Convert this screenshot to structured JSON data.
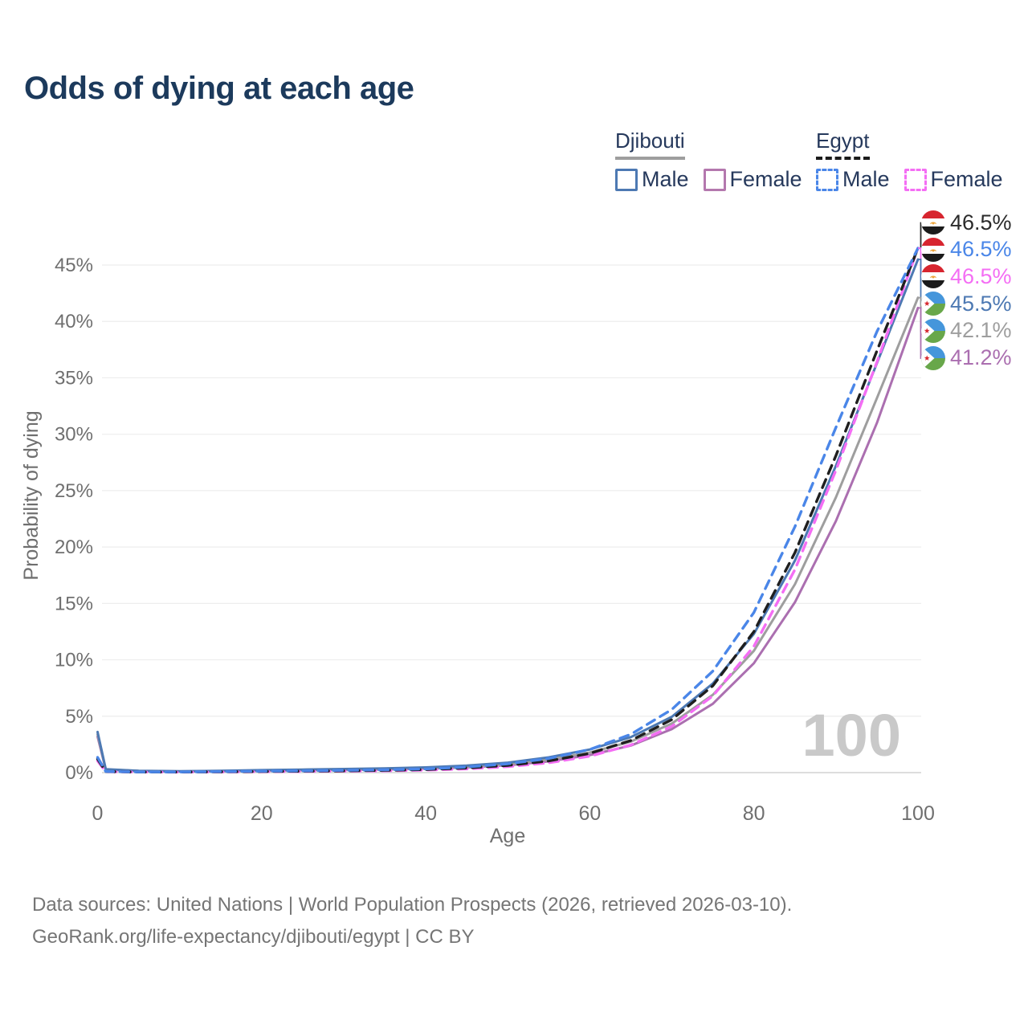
{
  "header": {
    "title": "Odds of dying at each age"
  },
  "legend": {
    "position": "top-right",
    "groups": [
      {
        "country": "Djibouti",
        "line_style": "solid",
        "underline_color": "#9e9e9e",
        "items": [
          {
            "label": "Male",
            "color": "#4d79b3",
            "box_style": "solid"
          },
          {
            "label": "Female",
            "color": "#b478ae",
            "box_style": "solid"
          }
        ]
      },
      {
        "country": "Egypt",
        "line_style": "dashed",
        "underline_color": "#1b1b1b",
        "items": [
          {
            "label": "Male",
            "color": "#4a86e8",
            "box_style": "dashed"
          },
          {
            "label": "Female",
            "color": "#f46ef4",
            "box_style": "dashed"
          }
        ]
      }
    ]
  },
  "watermark": "100",
  "chart_data": {
    "type": "line",
    "title": "Odds of dying at each age",
    "xlabel": "Age",
    "ylabel": "Probability of dying",
    "xlim": [
      0,
      100
    ],
    "ylim_percent": [
      0,
      47
    ],
    "xticks": [
      0,
      20,
      40,
      60,
      80,
      100
    ],
    "yticks_percent": [
      0,
      5,
      10,
      15,
      20,
      25,
      30,
      35,
      40,
      45
    ],
    "grid": "horizontal",
    "x_ages": [
      0,
      1,
      5,
      10,
      15,
      20,
      25,
      30,
      35,
      40,
      45,
      50,
      55,
      60,
      65,
      70,
      75,
      80,
      85,
      90,
      95,
      100
    ],
    "series": [
      {
        "name": "djibouti-female",
        "country": "Djibouti",
        "sex": "Female",
        "color": "#ab6fb0",
        "dash": false,
        "values_percent": [
          3.2,
          0.26,
          0.14,
          0.1,
          0.12,
          0.16,
          0.2,
          0.23,
          0.28,
          0.35,
          0.46,
          0.65,
          1.0,
          1.55,
          2.4,
          3.85,
          6.1,
          9.7,
          15.1,
          22.3,
          31.0,
          41.2
        ]
      },
      {
        "name": "djibouti-both",
        "country": "Djibouti",
        "sex": "Both",
        "color": "#9e9e9e",
        "dash": false,
        "values_percent": [
          3.4,
          0.28,
          0.15,
          0.11,
          0.14,
          0.19,
          0.23,
          0.27,
          0.32,
          0.4,
          0.53,
          0.75,
          1.15,
          1.78,
          2.75,
          4.35,
          6.9,
          10.8,
          16.7,
          24.4,
          33.2,
          42.1
        ]
      },
      {
        "name": "djibouti-male",
        "country": "Djibouti",
        "sex": "Male",
        "color": "#4d79b3",
        "dash": false,
        "values_percent": [
          3.6,
          0.3,
          0.16,
          0.12,
          0.16,
          0.22,
          0.27,
          0.32,
          0.38,
          0.46,
          0.62,
          0.88,
          1.35,
          2.05,
          3.15,
          4.95,
          7.9,
          12.3,
          18.8,
          27.2,
          36.3,
          45.5
        ]
      },
      {
        "name": "egypt-female",
        "country": "Egypt",
        "sex": "Female",
        "color": "#f46ef4",
        "dash": true,
        "values_percent": [
          1.05,
          0.08,
          0.05,
          0.04,
          0.06,
          0.08,
          0.1,
          0.13,
          0.16,
          0.22,
          0.33,
          0.53,
          0.87,
          1.45,
          2.45,
          4.1,
          6.8,
          11.2,
          18.0,
          26.8,
          36.4,
          46.5
        ]
      },
      {
        "name": "egypt-both",
        "country": "Egypt",
        "sex": "Both",
        "color": "#1f1f1f",
        "dash": true,
        "values_percent": [
          1.2,
          0.09,
          0.05,
          0.05,
          0.07,
          0.1,
          0.13,
          0.16,
          0.2,
          0.27,
          0.41,
          0.64,
          1.03,
          1.7,
          2.85,
          4.7,
          7.7,
          12.5,
          19.5,
          28.1,
          37.4,
          46.5
        ]
      },
      {
        "name": "egypt-male",
        "country": "Egypt",
        "sex": "Male",
        "color": "#4a86e8",
        "dash": true,
        "values_percent": [
          1.35,
          0.1,
          0.06,
          0.06,
          0.09,
          0.13,
          0.16,
          0.2,
          0.25,
          0.33,
          0.5,
          0.78,
          1.25,
          2.05,
          3.4,
          5.6,
          9.0,
          14.2,
          21.8,
          30.6,
          39.1,
          46.5
        ]
      }
    ],
    "end_labels": [
      {
        "series": "egypt-both",
        "text": "46.5%",
        "value_percent": 46.5,
        "color": "#2b2b2b",
        "flag": "egypt"
      },
      {
        "series": "egypt-male",
        "text": "46.5%",
        "value_percent": 46.5,
        "color": "#4a86e8",
        "flag": "egypt"
      },
      {
        "series": "egypt-female",
        "text": "46.5%",
        "value_percent": 46.5,
        "color": "#f46ef4",
        "flag": "egypt"
      },
      {
        "series": "djibouti-male",
        "text": "45.5%",
        "value_percent": 45.5,
        "color": "#4d79b3",
        "flag": "djibouti"
      },
      {
        "series": "djibouti-both",
        "text": "42.1%",
        "value_percent": 42.1,
        "color": "#9e9e9e",
        "flag": "djibouti"
      },
      {
        "series": "djibouti-female",
        "text": "41.2%",
        "value_percent": 41.2,
        "color": "#ab6fb0",
        "flag": "djibouti"
      }
    ]
  },
  "footer": {
    "line1": "Data sources: United Nations | World Population Prospects (2026, retrieved 2026-03-10).",
    "line2": "GeoRank.org/life-expectancy/djibouti/egypt | CC BY"
  }
}
